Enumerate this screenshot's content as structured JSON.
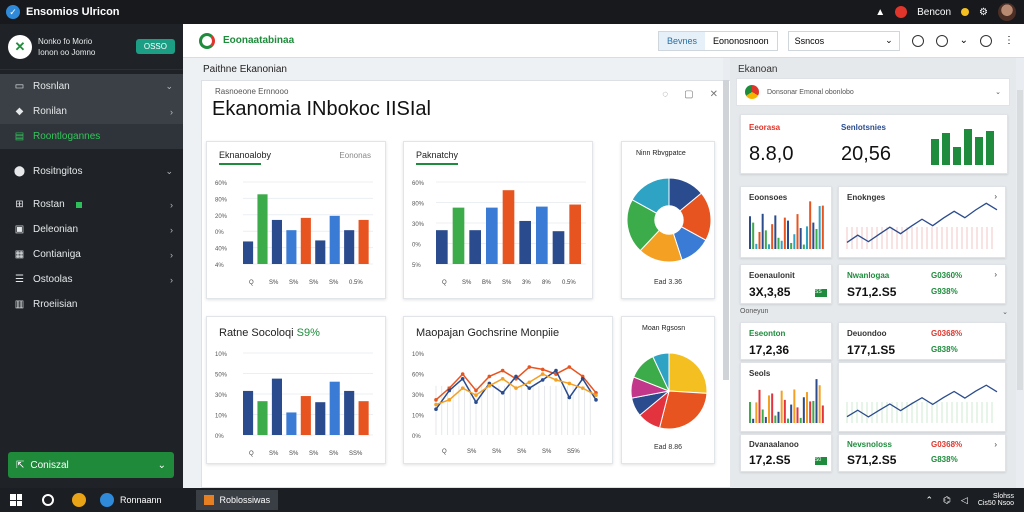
{
  "window": {
    "title": "Ensomios Ulricon"
  },
  "titlebar": {
    "user_label": "Bencon"
  },
  "sidebar": {
    "header_line1": "Nonko fo Morio",
    "header_line2": "Ionon oo Jomno",
    "badge": "OSSO",
    "items": [
      {
        "label": "Rosnlan",
        "icon": "window-icon"
      },
      {
        "label": "Ronilan",
        "icon": "bookmark-icon"
      },
      {
        "label": "Roontlogannes",
        "icon": "mail-icon"
      },
      {
        "label": "Rositngitos",
        "icon": "group-icon"
      },
      {
        "label": "Rostan",
        "icon": "sitemap-icon"
      },
      {
        "label": "Deleonian",
        "icon": "briefcase-icon"
      },
      {
        "label": "Contianiga",
        "icon": "calendar-icon"
      },
      {
        "label": "Ostoolas",
        "icon": "list-icon"
      },
      {
        "label": "Rroeiisian",
        "icon": "document-icon"
      }
    ],
    "footer_label": "Coniszal"
  },
  "topbar": {
    "title": "Eoonaatabinaa",
    "tabs": [
      "Bevnes",
      "Eononosnoon"
    ],
    "select_value": "Ssncos"
  },
  "main": {
    "section_label": "Paithne Ekanonian",
    "panel_subtitle": "Rasnoeone Ernnooo",
    "panel_title": "Ekanomia INbokoc IISIal",
    "cards": [
      {
        "title": "Eknanoaloby",
        "subtitle": "Eononas",
        "legend": [
          "Q",
          "S%",
          "S%",
          "S%",
          "S%",
          "0.5%"
        ],
        "chart_data": {
          "type": "bar",
          "ylabels": [
            "60%",
            "80%",
            "20%",
            "0%",
            "40%",
            "4%"
          ],
          "values": [
            22,
            68,
            43,
            33,
            45,
            23,
            47,
            33,
            43
          ]
        }
      },
      {
        "title": "Paknatchy",
        "legend": [
          "Q",
          "S%",
          "B%",
          "S%",
          "3%",
          "8%",
          "0.5%"
        ],
        "chart_data": {
          "type": "bar",
          "ylabels": [
            "60%",
            "80%",
            "30%",
            "0%",
            "5%"
          ],
          "values": [
            33,
            55,
            33,
            55,
            72,
            42,
            56,
            32,
            58
          ]
        }
      },
      {
        "title": "Ninn Rbvgpatce",
        "footer": "Ead 3.36",
        "chart_data": {
          "type": "pie",
          "values": [
            14,
            19,
            12,
            17,
            21,
            17
          ],
          "colors": [
            "#2a4b8d",
            "#e8541f",
            "#3a7bd5",
            "#f4a023",
            "#3cab4a",
            "#2fa3c4"
          ]
        }
      },
      {
        "title": "Ratne Socoloqi",
        "title_accent": "S9%",
        "legend": [
          "Q",
          "S%",
          "S%",
          "S%",
          "S%",
          "SS%"
        ],
        "chart_data": {
          "type": "bar",
          "ylabels": [
            "10%",
            "50%",
            "30%",
            "10%",
            "0%"
          ],
          "values": [
            43,
            33,
            55,
            22,
            38,
            32,
            52,
            43,
            33
          ]
        }
      },
      {
        "title": "Maopajan Gochsrine Monpiie",
        "legend": [
          "Q",
          "S%",
          "S%",
          "S%",
          "S%",
          "S5%"
        ],
        "chart_data": {
          "type": "line",
          "ylabels": [
            "10%",
            "60%",
            "30%",
            "10%",
            "0%"
          ],
          "series": [
            {
              "color": "#e8541f",
              "values": [
                30,
                40,
                52,
                38,
                50,
                55,
                48,
                58,
                56,
                52,
                58,
                50,
                36
              ]
            },
            {
              "color": "#2a4b8d",
              "values": [
                22,
                38,
                48,
                28,
                44,
                36,
                50,
                40,
                47,
                55,
                32,
                48,
                30
              ]
            },
            {
              "color": "#f4a023",
              "values": [
                26,
                30,
                40,
                34,
                42,
                48,
                40,
                45,
                52,
                47,
                44,
                40,
                34
              ]
            }
          ]
        }
      },
      {
        "title": "Moan Rgsosn",
        "footer": "Ead 8.86",
        "chart_data": {
          "type": "pie",
          "values": [
            26,
            28,
            10,
            8,
            9,
            12,
            7
          ],
          "colors": [
            "#f4c021",
            "#e8541f",
            "#e2333f",
            "#2a4b8d",
            "#c2378a",
            "#3cab4a",
            "#2fa3c4"
          ]
        }
      }
    ]
  },
  "right": {
    "section_label": "Ekanoan",
    "header_text": "Donsonar Emonal obonlobo",
    "kpi": [
      {
        "label": "Eeorasa",
        "value": "8.8,0",
        "color": "#1e8c3c"
      },
      {
        "label": "Senlotsnies",
        "value": "20,56",
        "color": "#222"
      }
    ],
    "charts": [
      {
        "title": "Eoonsoes"
      },
      {
        "title": "Enoknges"
      }
    ],
    "stats": [
      {
        "label": "Eoenaulonit",
        "value": "3X,3,85",
        "badge": "SS"
      },
      {
        "label": "Nwanlogaa",
        "value": "S71,2.S5",
        "pct": "G0360%",
        "pct2": "G938%"
      }
    ],
    "section2": "Ooneyun",
    "stats2": [
      {
        "label": "Eseonton",
        "value": "17,2,36"
      },
      {
        "label": "Deuondoo",
        "value": "177,1.S5",
        "pct": "G0368%",
        "pct2": "G838%"
      }
    ],
    "charts2": [
      {
        "title": "Seols"
      },
      {
        "title": ""
      }
    ],
    "stats3": [
      {
        "label": "Dvanaalanoo",
        "value": "17,2.S5",
        "badge": "S0"
      },
      {
        "label": "Nevsnoloss",
        "value": "S71,2.S5",
        "pct": "G0368%",
        "pct2": "G838%"
      }
    ]
  },
  "taskbar": {
    "app_label": "Ronnaann",
    "active_label": "Roblossiwas",
    "time": "Slohss",
    "date": "Cis50 Nsoo"
  }
}
